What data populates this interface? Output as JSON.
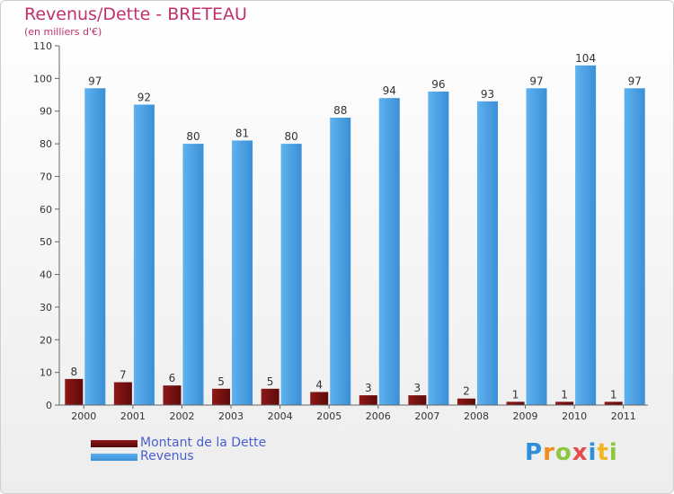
{
  "title": "Revenus/Dette - BRETEAU",
  "subtitle": "(en milliers d'€)",
  "logo": {
    "text": "Proxiti",
    "colors": [
      "#2f8fd8",
      "#f28c1e",
      "#8dc63f",
      "#e54c4c",
      "#2f8fd8",
      "#f2b61e",
      "#8dc63f"
    ]
  },
  "colors": {
    "dette": "#7a1010",
    "revenus": "#4da3e6",
    "title": "#c0306a",
    "legend_text": "#4a5fd0"
  },
  "chart_data": {
    "type": "bar",
    "title": "Revenus/Dette - BRETEAU",
    "subtitle": "(en milliers d'€)",
    "categories": [
      "2000",
      "2001",
      "2002",
      "2003",
      "2004",
      "2005",
      "2006",
      "2007",
      "2008",
      "2009",
      "2010",
      "2011"
    ],
    "series": [
      {
        "name": "Montant de la Dette",
        "values": [
          8,
          7,
          6,
          5,
          5,
          4,
          3,
          3,
          2,
          1,
          1,
          1
        ]
      },
      {
        "name": "Revenus",
        "values": [
          97,
          92,
          80,
          81,
          80,
          88,
          94,
          96,
          93,
          97,
          104,
          97
        ]
      }
    ],
    "yticks": [
      0,
      10,
      20,
      30,
      40,
      50,
      60,
      70,
      80,
      90,
      100,
      110
    ],
    "ylim": [
      0,
      110
    ],
    "grid": false,
    "data_labels": true,
    "legend_position": "bottom-left"
  }
}
